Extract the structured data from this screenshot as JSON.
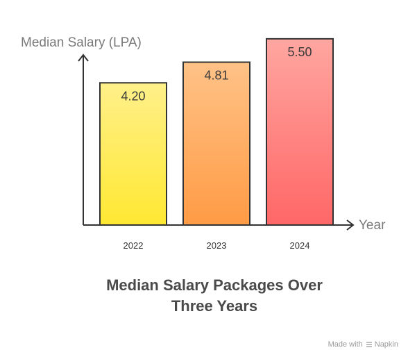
{
  "chart_data": {
    "type": "bar",
    "title_lines": [
      "Median Salary Packages Over",
      "Three Years"
    ],
    "ylabel": "Median Salary (LPA)",
    "xlabel": "Year",
    "categories": [
      "2022",
      "2023",
      "2024"
    ],
    "values": [
      4.2,
      4.81,
      5.5
    ],
    "value_labels": [
      "4.20",
      "4.81",
      "5.50"
    ],
    "ylim": [
      0,
      6.0
    ],
    "grid": false,
    "legend": "none",
    "colors": [
      {
        "top": "#fff08a",
        "bottom": "#ffe832"
      },
      {
        "top": "#ffc287",
        "bottom": "#ff9b45"
      },
      {
        "top": "#ffa6a0",
        "bottom": "#ff6767"
      }
    ],
    "stroke_color": "#333333"
  },
  "footer": {
    "made_with": "Made with",
    "brand": "Napkin",
    "brand_icon": "napkin-logo-icon"
  }
}
